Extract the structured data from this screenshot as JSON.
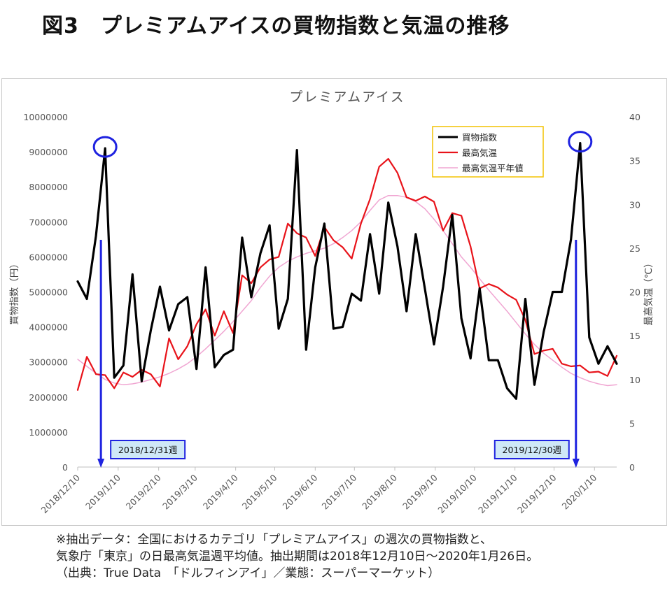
{
  "title": "図3　プレミアムアイスの買物指数と気温の推移",
  "chart_data": {
    "type": "line",
    "title": "プレミアムアイス",
    "ylabel_left": "買物指数（円）",
    "ylabel_right": "最高気温（℃）",
    "ylim_left": [
      0,
      10000000
    ],
    "ylim_right": [
      0,
      40
    ],
    "yticks_left": [
      "0",
      "1000000",
      "2000000",
      "3000000",
      "4000000",
      "5000000",
      "6000000",
      "7000000",
      "8000000",
      "9000000",
      "10000000"
    ],
    "yticks_right": [
      "0",
      "5",
      "10",
      "15",
      "20",
      "25",
      "30",
      "35",
      "40"
    ],
    "xtick_labels": [
      "2018/12/10",
      "2019/1/10",
      "2019/2/10",
      "2019/3/10",
      "2019/4/10",
      "2019/5/10",
      "2019/6/10",
      "2019/7/10",
      "2019/8/10",
      "2019/9/10",
      "2019/10/10",
      "2019/11/10",
      "2019/12/10",
      "2020/1/10"
    ],
    "xtick_week_index": [
      0,
      4.43,
      8.86,
      12.86,
      17.29,
      21.57,
      26,
      30.29,
      34.71,
      39.14,
      43.43,
      47.86,
      52.14,
      56.57
    ],
    "weeks": 60,
    "legend": [
      "買物指数",
      "最高気温",
      "最高気温平年値"
    ],
    "colors": {
      "index": "#000000",
      "temp": "#e8131a",
      "normal": "#f0a6d2",
      "annot": "#1f23e0",
      "annot_box": "#cfe8f7"
    },
    "series": [
      {
        "name": "買物指数",
        "axis": "left",
        "values": [
          5300000,
          4800000,
          6600000,
          9100000,
          2550000,
          2900000,
          5500000,
          2450000,
          3900000,
          5150000,
          3900000,
          4650000,
          4850000,
          2800000,
          5700000,
          2850000,
          3200000,
          3350000,
          6550000,
          4850000,
          6100000,
          6900000,
          3950000,
          4800000,
          9050000,
          3350000,
          5700000,
          6950000,
          3950000,
          4000000,
          4950000,
          4750000,
          6650000,
          4950000,
          7550000,
          6300000,
          4450000,
          6650000,
          5100000,
          3500000,
          5150000,
          7200000,
          4250000,
          3100000,
          5100000,
          3050000,
          3050000,
          2250000,
          1950000,
          4800000,
          2350000,
          3850000,
          5000000,
          5000000,
          6500000,
          9250000,
          3700000,
          2950000,
          3450000,
          2950000
        ]
      },
      {
        "name": "最高気温",
        "axis": "right",
        "values": [
          8.8,
          12.6,
          10.6,
          10.5,
          9.0,
          10.8,
          10.3,
          11.1,
          10.6,
          9.2,
          14.7,
          12.3,
          13.8,
          16.3,
          18.0,
          15.0,
          17.8,
          15.3,
          21.9,
          21.0,
          22.8,
          23.7,
          24.0,
          27.8,
          26.7,
          26.2,
          24.1,
          27.4,
          25.9,
          25.1,
          23.8,
          27.8,
          30.6,
          34.3,
          35.2,
          33.6,
          30.8,
          30.4,
          30.9,
          30.3,
          27.0,
          29.0,
          28.7,
          25.2,
          20.4,
          20.9,
          20.5,
          19.7,
          19.1,
          16.8,
          12.9,
          13.3,
          13.5,
          11.8,
          11.5,
          11.6,
          10.8,
          10.9,
          10.4,
          12.7
        ]
      },
      {
        "name": "最高気温平年値",
        "axis": "right",
        "values": [
          12.3,
          11.5,
          10.7,
          10.0,
          9.6,
          9.4,
          9.5,
          9.7,
          10.0,
          10.3,
          10.7,
          11.2,
          11.8,
          12.6,
          13.5,
          14.5,
          15.5,
          16.6,
          17.8,
          19.0,
          20.5,
          21.8,
          22.8,
          23.5,
          24.0,
          24.4,
          24.7,
          25.0,
          25.5,
          26.2,
          27.0,
          28.0,
          29.3,
          30.5,
          31.0,
          31.0,
          30.8,
          30.3,
          29.5,
          28.3,
          27.0,
          25.5,
          24.0,
          22.8,
          21.5,
          20.2,
          19.0,
          17.8,
          16.5,
          15.2,
          14.0,
          13.0,
          12.2,
          11.4,
          10.7,
          10.2,
          9.8,
          9.5,
          9.3,
          9.4
        ]
      }
    ],
    "annotations": [
      {
        "label": "2018/12/31週",
        "week": 3
      },
      {
        "label": "2019/12/30週",
        "week": 55
      }
    ]
  },
  "footnote": [
    "※抽出データ：全国におけるカテゴリ「プレミアムアイス」の週次の買物指数と、",
    "気象庁「東京」の日最高気温週平均値。抽出期間は2018年12月10日〜2020年1月26日。",
    "（出典：True Data　「ドルフィンアイ」／業態：スーパーマーケット）"
  ]
}
